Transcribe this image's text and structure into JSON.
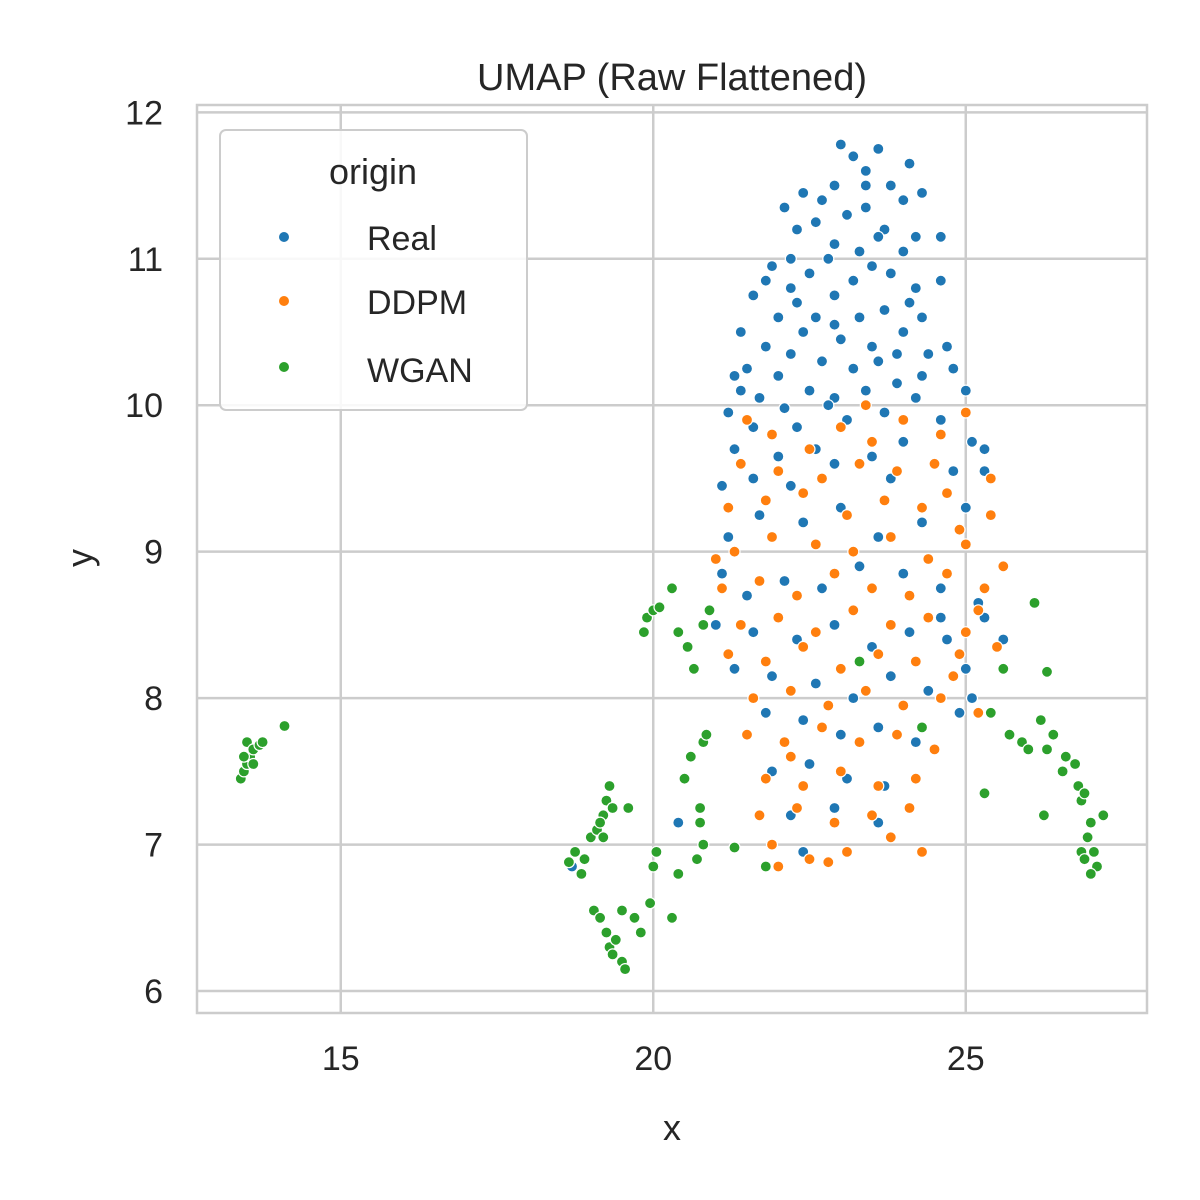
{
  "chart_data": {
    "type": "scatter",
    "title": "UMAP (Raw Flattened)",
    "xlabel": "x",
    "ylabel": "y",
    "xlim": [
      12.7,
      27.9
    ],
    "ylim": [
      5.85,
      12.05
    ],
    "xticks": [
      15,
      20,
      25
    ],
    "yticks": [
      6,
      7,
      8,
      9,
      10,
      11,
      12
    ],
    "grid": true,
    "legend": {
      "title": "origin",
      "placement": "top-left"
    },
    "series": [
      {
        "name": "Real",
        "color": "#1f77b4",
        "points": [
          [
            23.0,
            11.78
          ],
          [
            23.2,
            11.7
          ],
          [
            23.4,
            11.6
          ],
          [
            23.6,
            11.75
          ],
          [
            23.8,
            11.5
          ],
          [
            24.1,
            11.65
          ],
          [
            22.9,
            11.5
          ],
          [
            22.4,
            11.45
          ],
          [
            22.7,
            11.4
          ],
          [
            23.1,
            11.3
          ],
          [
            23.4,
            11.35
          ],
          [
            23.7,
            11.2
          ],
          [
            24.0,
            11.4
          ],
          [
            24.3,
            11.45
          ],
          [
            22.1,
            11.35
          ],
          [
            22.6,
            11.25
          ],
          [
            22.9,
            11.1
          ],
          [
            23.3,
            11.05
          ],
          [
            23.6,
            11.15
          ],
          [
            24.2,
            11.15
          ],
          [
            22.3,
            11.2
          ],
          [
            22.8,
            11.0
          ],
          [
            23.5,
            10.95
          ],
          [
            24.0,
            11.05
          ],
          [
            24.6,
            11.15
          ],
          [
            21.9,
            10.95
          ],
          [
            22.2,
            10.8
          ],
          [
            22.5,
            10.9
          ],
          [
            22.9,
            10.75
          ],
          [
            23.2,
            10.85
          ],
          [
            23.8,
            10.9
          ],
          [
            24.2,
            10.8
          ],
          [
            24.6,
            10.85
          ],
          [
            21.8,
            10.85
          ],
          [
            22.3,
            10.7
          ],
          [
            22.6,
            10.6
          ],
          [
            22.9,
            10.55
          ],
          [
            23.3,
            10.6
          ],
          [
            23.7,
            10.65
          ],
          [
            24.1,
            10.7
          ],
          [
            21.6,
            10.75
          ],
          [
            22.0,
            10.6
          ],
          [
            22.4,
            10.5
          ],
          [
            23.0,
            10.45
          ],
          [
            23.5,
            10.4
          ],
          [
            24.0,
            10.5
          ],
          [
            21.4,
            10.5
          ],
          [
            21.8,
            10.4
          ],
          [
            22.2,
            10.35
          ],
          [
            22.7,
            10.3
          ],
          [
            23.2,
            10.25
          ],
          [
            23.6,
            10.3
          ],
          [
            24.4,
            10.35
          ],
          [
            24.7,
            10.4
          ],
          [
            21.3,
            10.2
          ],
          [
            21.5,
            10.25
          ],
          [
            22.0,
            10.2
          ],
          [
            22.5,
            10.1
          ],
          [
            22.9,
            10.05
          ],
          [
            23.4,
            10.1
          ],
          [
            23.9,
            10.15
          ],
          [
            24.3,
            10.2
          ],
          [
            24.8,
            10.25
          ],
          [
            21.4,
            10.1
          ],
          [
            21.7,
            10.05
          ],
          [
            22.1,
            9.98
          ],
          [
            22.8,
            10.0
          ],
          [
            23.7,
            9.95
          ],
          [
            24.2,
            10.05
          ],
          [
            25.0,
            10.1
          ],
          [
            21.2,
            9.95
          ],
          [
            21.6,
            9.85
          ],
          [
            22.3,
            9.85
          ],
          [
            23.1,
            9.9
          ],
          [
            24.6,
            9.9
          ],
          [
            25.1,
            9.75
          ],
          [
            21.3,
            9.7
          ],
          [
            22.0,
            9.65
          ],
          [
            22.6,
            9.7
          ],
          [
            23.5,
            9.65
          ],
          [
            24.0,
            9.75
          ],
          [
            25.3,
            9.7
          ],
          [
            21.1,
            9.45
          ],
          [
            21.6,
            9.5
          ],
          [
            22.2,
            9.45
          ],
          [
            22.9,
            9.6
          ],
          [
            23.8,
            9.5
          ],
          [
            24.8,
            9.55
          ],
          [
            25.3,
            9.55
          ],
          [
            21.2,
            9.1
          ],
          [
            21.7,
            9.25
          ],
          [
            22.4,
            9.2
          ],
          [
            23.0,
            9.3
          ],
          [
            23.6,
            9.1
          ],
          [
            24.3,
            9.2
          ],
          [
            25.0,
            9.3
          ],
          [
            21.1,
            8.85
          ],
          [
            21.5,
            8.7
          ],
          [
            22.1,
            8.8
          ],
          [
            22.7,
            8.75
          ],
          [
            23.3,
            8.9
          ],
          [
            24.0,
            8.85
          ],
          [
            24.6,
            8.75
          ],
          [
            25.2,
            8.65
          ],
          [
            21.0,
            8.5
          ],
          [
            21.6,
            8.45
          ],
          [
            22.3,
            8.4
          ],
          [
            22.9,
            8.5
          ],
          [
            23.5,
            8.35
          ],
          [
            24.1,
            8.45
          ],
          [
            24.7,
            8.4
          ],
          [
            25.3,
            8.55
          ],
          [
            21.3,
            8.2
          ],
          [
            21.9,
            8.15
          ],
          [
            22.6,
            8.1
          ],
          [
            23.2,
            8.0
          ],
          [
            23.8,
            8.15
          ],
          [
            24.4,
            8.05
          ],
          [
            25.0,
            8.2
          ],
          [
            21.8,
            7.9
          ],
          [
            22.4,
            7.85
          ],
          [
            23.0,
            7.75
          ],
          [
            23.6,
            7.8
          ],
          [
            24.2,
            7.7
          ],
          [
            21.9,
            7.5
          ],
          [
            22.5,
            7.55
          ],
          [
            23.1,
            7.45
          ],
          [
            23.7,
            7.4
          ],
          [
            22.2,
            7.2
          ],
          [
            22.9,
            7.25
          ],
          [
            23.6,
            7.15
          ],
          [
            22.4,
            6.95
          ],
          [
            20.4,
            7.15
          ],
          [
            18.7,
            6.85
          ],
          [
            24.6,
            8.55
          ],
          [
            25.1,
            8.0
          ],
          [
            23.4,
            11.5
          ],
          [
            24.3,
            10.6
          ],
          [
            22.2,
            11.0
          ],
          [
            23.9,
            10.35
          ],
          [
            25.6,
            8.4
          ],
          [
            24.9,
            7.9
          ]
        ]
      },
      {
        "name": "DDPM",
        "color": "#ff7f0e",
        "points": [
          [
            21.5,
            9.9
          ],
          [
            21.9,
            9.8
          ],
          [
            22.5,
            9.7
          ],
          [
            23.0,
            9.85
          ],
          [
            23.5,
            9.75
          ],
          [
            24.0,
            9.9
          ],
          [
            24.6,
            9.8
          ],
          [
            25.0,
            9.95
          ],
          [
            21.4,
            9.6
          ],
          [
            22.0,
            9.55
          ],
          [
            22.7,
            9.5
          ],
          [
            23.3,
            9.6
          ],
          [
            23.9,
            9.55
          ],
          [
            24.5,
            9.6
          ],
          [
            25.4,
            9.5
          ],
          [
            21.2,
            9.3
          ],
          [
            21.8,
            9.35
          ],
          [
            22.4,
            9.4
          ],
          [
            23.1,
            9.25
          ],
          [
            23.7,
            9.35
          ],
          [
            24.3,
            9.3
          ],
          [
            24.9,
            9.15
          ],
          [
            25.4,
            9.25
          ],
          [
            21.3,
            9.0
          ],
          [
            21.9,
            9.1
          ],
          [
            22.6,
            9.05
          ],
          [
            23.2,
            9.0
          ],
          [
            23.8,
            9.1
          ],
          [
            24.4,
            8.95
          ],
          [
            25.0,
            9.05
          ],
          [
            25.6,
            8.9
          ],
          [
            21.1,
            8.75
          ],
          [
            21.7,
            8.8
          ],
          [
            22.3,
            8.7
          ],
          [
            22.9,
            8.85
          ],
          [
            23.5,
            8.75
          ],
          [
            24.1,
            8.7
          ],
          [
            24.7,
            8.85
          ],
          [
            25.3,
            8.75
          ],
          [
            21.4,
            8.5
          ],
          [
            22.0,
            8.55
          ],
          [
            22.6,
            8.45
          ],
          [
            23.2,
            8.6
          ],
          [
            23.8,
            8.5
          ],
          [
            24.4,
            8.55
          ],
          [
            25.0,
            8.45
          ],
          [
            25.5,
            8.35
          ],
          [
            21.2,
            8.3
          ],
          [
            21.8,
            8.25
          ],
          [
            22.4,
            8.35
          ],
          [
            23.0,
            8.2
          ],
          [
            23.6,
            8.3
          ],
          [
            24.2,
            8.25
          ],
          [
            24.8,
            8.15
          ],
          [
            21.6,
            8.0
          ],
          [
            22.2,
            8.05
          ],
          [
            22.8,
            7.95
          ],
          [
            23.4,
            8.05
          ],
          [
            24.0,
            7.95
          ],
          [
            24.6,
            8.0
          ],
          [
            25.2,
            7.9
          ],
          [
            21.5,
            7.75
          ],
          [
            22.1,
            7.7
          ],
          [
            22.7,
            7.8
          ],
          [
            23.3,
            7.7
          ],
          [
            23.9,
            7.75
          ],
          [
            24.5,
            7.65
          ],
          [
            21.8,
            7.45
          ],
          [
            22.4,
            7.4
          ],
          [
            23.0,
            7.5
          ],
          [
            23.6,
            7.4
          ],
          [
            24.2,
            7.45
          ],
          [
            21.7,
            7.2
          ],
          [
            22.3,
            7.25
          ],
          [
            22.9,
            7.15
          ],
          [
            23.5,
            7.2
          ],
          [
            24.1,
            7.25
          ],
          [
            21.9,
            7.0
          ],
          [
            22.5,
            6.9
          ],
          [
            23.1,
            6.95
          ],
          [
            23.8,
            7.05
          ],
          [
            24.3,
            6.95
          ],
          [
            22.0,
            6.85
          ],
          [
            22.8,
            6.88
          ],
          [
            25.2,
            8.6
          ],
          [
            24.7,
            9.4
          ],
          [
            21.0,
            8.95
          ],
          [
            23.4,
            10.0
          ],
          [
            22.2,
            7.6
          ],
          [
            24.9,
            8.3
          ]
        ]
      },
      {
        "name": "WGAN",
        "color": "#2ca02c",
        "points": [
          [
            13.4,
            7.45
          ],
          [
            13.45,
            7.5
          ],
          [
            13.5,
            7.55
          ],
          [
            13.55,
            7.6
          ],
          [
            13.6,
            7.55
          ],
          [
            13.5,
            7.7
          ],
          [
            13.6,
            7.65
          ],
          [
            13.7,
            7.68
          ],
          [
            13.75,
            7.7
          ],
          [
            13.45,
            7.6
          ],
          [
            14.1,
            7.81
          ],
          [
            18.65,
            6.88
          ],
          [
            18.75,
            6.95
          ],
          [
            18.9,
            6.9
          ],
          [
            18.85,
            6.8
          ],
          [
            19.0,
            7.05
          ],
          [
            19.1,
            7.1
          ],
          [
            19.2,
            7.2
          ],
          [
            19.25,
            7.3
          ],
          [
            19.3,
            7.4
          ],
          [
            19.35,
            7.25
          ],
          [
            19.2,
            7.05
          ],
          [
            19.15,
            7.15
          ],
          [
            19.6,
            7.25
          ],
          [
            19.05,
            6.55
          ],
          [
            19.15,
            6.5
          ],
          [
            19.25,
            6.4
          ],
          [
            19.3,
            6.3
          ],
          [
            19.35,
            6.25
          ],
          [
            19.4,
            6.35
          ],
          [
            19.5,
            6.2
          ],
          [
            19.55,
            6.15
          ],
          [
            19.5,
            6.55
          ],
          [
            19.7,
            6.5
          ],
          [
            19.8,
            6.4
          ],
          [
            19.95,
            6.6
          ],
          [
            20.3,
            6.5
          ],
          [
            20.05,
            6.95
          ],
          [
            20.0,
            6.85
          ],
          [
            20.4,
            6.8
          ],
          [
            20.7,
            6.9
          ],
          [
            20.8,
            7.0
          ],
          [
            20.75,
            7.15
          ],
          [
            20.75,
            7.25
          ],
          [
            20.5,
            7.45
          ],
          [
            20.6,
            7.6
          ],
          [
            20.8,
            7.7
          ],
          [
            20.85,
            7.75
          ],
          [
            19.85,
            8.45
          ],
          [
            19.9,
            8.55
          ],
          [
            20.0,
            8.6
          ],
          [
            20.1,
            8.62
          ],
          [
            20.3,
            8.75
          ],
          [
            20.4,
            8.45
          ],
          [
            20.55,
            8.35
          ],
          [
            20.65,
            8.2
          ],
          [
            20.8,
            8.5
          ],
          [
            20.9,
            8.6
          ],
          [
            26.1,
            8.65
          ],
          [
            26.3,
            8.18
          ],
          [
            25.6,
            8.2
          ],
          [
            25.4,
            7.9
          ],
          [
            25.7,
            7.75
          ],
          [
            25.9,
            7.7
          ],
          [
            26.0,
            7.65
          ],
          [
            26.2,
            7.85
          ],
          [
            26.3,
            7.65
          ],
          [
            26.55,
            7.5
          ],
          [
            26.6,
            7.6
          ],
          [
            26.75,
            7.55
          ],
          [
            26.8,
            7.4
          ],
          [
            26.85,
            7.3
          ],
          [
            26.9,
            7.35
          ],
          [
            27.0,
            7.15
          ],
          [
            26.95,
            7.05
          ],
          [
            27.05,
            6.95
          ],
          [
            27.1,
            6.85
          ],
          [
            27.0,
            6.8
          ],
          [
            26.85,
            6.95
          ],
          [
            26.9,
            6.9
          ],
          [
            27.2,
            7.2
          ],
          [
            26.4,
            7.75
          ],
          [
            25.3,
            7.35
          ],
          [
            26.25,
            7.2
          ],
          [
            24.3,
            7.8
          ],
          [
            21.8,
            6.85
          ],
          [
            21.3,
            6.98
          ],
          [
            23.3,
            8.25
          ]
        ]
      }
    ]
  }
}
